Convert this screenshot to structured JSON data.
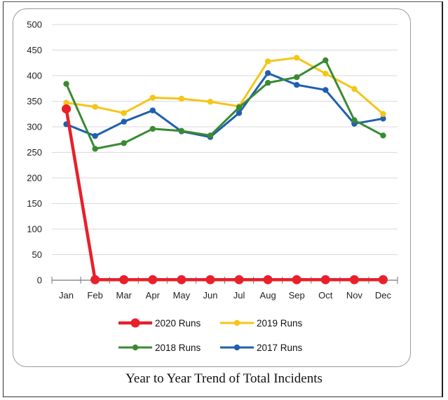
{
  "caption": "Year to Year Trend of Total Incidents",
  "chart_data": {
    "type": "line",
    "title": "",
    "xlabel": "",
    "ylabel": "",
    "categories": [
      "Jan",
      "Feb",
      "Mar",
      "Apr",
      "May",
      "Jun",
      "Jul",
      "Aug",
      "Sep",
      "Oct",
      "Nov",
      "Dec"
    ],
    "ylim": [
      0,
      500
    ],
    "yticks": [
      "0",
      "50",
      "100",
      "150",
      "200",
      "250",
      "300",
      "350",
      "400",
      "450",
      "500"
    ],
    "grid": true,
    "legend_position": "bottom",
    "series": [
      {
        "name": "2020 Runs",
        "color": "#e8202a",
        "values": [
          335,
          1,
          1,
          1,
          1,
          1,
          1,
          1,
          1,
          1,
          1,
          1
        ]
      },
      {
        "name": "2019 Runs",
        "color": "#f5c518",
        "values": [
          347,
          339,
          327,
          357,
          355,
          349,
          340,
          428,
          435,
          404,
          374,
          325
        ]
      },
      {
        "name": "2018 Runs",
        "color": "#3a8a32",
        "values": [
          384,
          257,
          268,
          296,
          292,
          283,
          338,
          386,
          397,
          430,
          313,
          283
        ]
      },
      {
        "name": "2017 Runs",
        "color": "#1f5fb0",
        "values": [
          305,
          282,
          310,
          332,
          291,
          280,
          327,
          405,
          382,
          372,
          306,
          316
        ]
      }
    ]
  }
}
